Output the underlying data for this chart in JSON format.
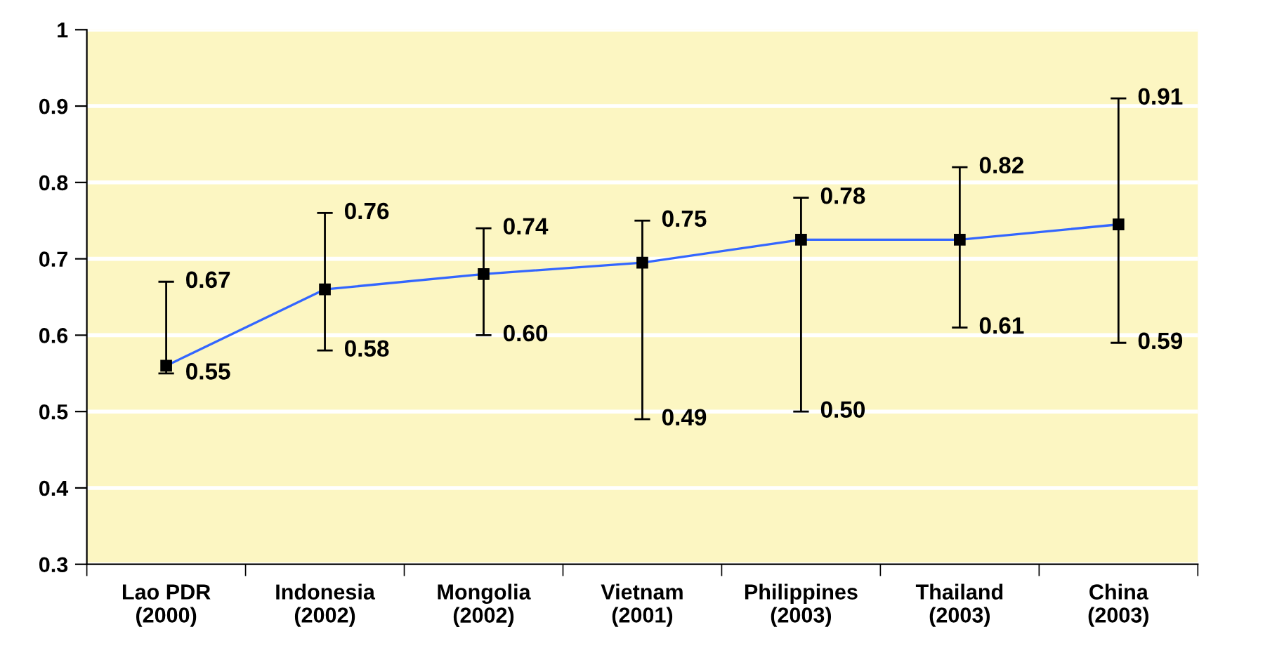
{
  "chart_data": {
    "type": "line",
    "categories": [
      "Lao PDR\n(2000)",
      "Indonesia\n(2002)",
      "Mongolia\n(2002)",
      "Vietnam\n(2001)",
      "Philippines\n(2003)",
      "Thailand\n(2003)",
      "China\n(2003)"
    ],
    "series": [
      {
        "color": "#3366ff",
        "values": [
          0.56,
          0.66,
          0.68,
          0.695,
          0.725,
          0.725,
          0.745
        ],
        "errors": [
          [
            0.55,
            0.67
          ],
          [
            0.58,
            0.76
          ],
          [
            0.6,
            0.74
          ],
          [
            0.49,
            0.75
          ],
          [
            0.5,
            0.78
          ],
          [
            0.61,
            0.82
          ],
          [
            0.59,
            0.91
          ]
        ]
      }
    ],
    "marker": "square",
    "line_style": "solid",
    "grid": "y",
    "legend": false,
    "ylim": [
      0.3,
      1
    ],
    "yticks": [
      0.3,
      0.4,
      0.5,
      0.6,
      0.7,
      0.8,
      0.9,
      1
    ],
    "annotations": [
      {
        "text": "0.67",
        "x": "Lao PDR\n(2000)",
        "y": 0.67
      },
      {
        "text": "0.55",
        "x": "Lao PDR\n(2000)",
        "y": 0.55
      },
      {
        "text": "0.76",
        "x": "Indonesia\n(2002)",
        "y": 0.76
      },
      {
        "text": "0.58",
        "x": "Indonesia\n(2002)",
        "y": 0.58
      },
      {
        "text": "0.74",
        "x": "Mongolia\n(2002)",
        "y": 0.74
      },
      {
        "text": "0.60",
        "x": "Mongolia\n(2002)",
        "y": 0.6
      },
      {
        "text": "0.75",
        "x": "Vietnam\n(2001)",
        "y": 0.75
      },
      {
        "text": "0.49",
        "x": "Vietnam\n(2001)",
        "y": 0.49
      },
      {
        "text": "0.78",
        "x": "Philippines\n(2003)",
        "y": 0.78
      },
      {
        "text": "0.50",
        "x": "Philippines\n(2003)",
        "y": 0.5
      },
      {
        "text": "0.82",
        "x": "Thailand\n(2003)",
        "y": 0.82
      },
      {
        "text": "0.61",
        "x": "Thailand\n(2003)",
        "y": 0.61
      },
      {
        "text": "0.91",
        "x": "China\n(2003)",
        "y": 0.91
      },
      {
        "text": "0.59",
        "x": "China\n(2003)",
        "y": 0.59
      }
    ]
  }
}
